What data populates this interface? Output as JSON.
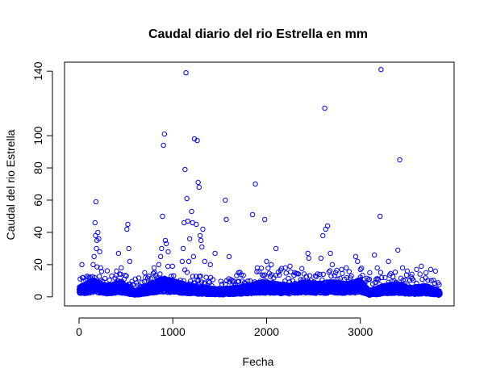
{
  "chart_data": {
    "type": "scatter",
    "title": "Caudal diario del rio Estrella en mm",
    "xlabel": "Fecha",
    "ylabel": "Caudal del rio Estrella",
    "xlim": [
      -155,
      4000
    ],
    "ylim": [
      -5.6,
      145.6
    ],
    "xticks": [
      0,
      1000,
      2000,
      3000
    ],
    "yticks": [
      0,
      20,
      40,
      60,
      80,
      100,
      140
    ],
    "grid": false,
    "legend": "none",
    "marker": "open-circle",
    "color": "#0000ff",
    "baseline": {
      "n": 3850,
      "base_levels": [
        [
          0,
          5
        ],
        [
          150,
          9
        ],
        [
          300,
          6
        ],
        [
          450,
          8
        ],
        [
          600,
          3
        ],
        [
          750,
          7
        ],
        [
          900,
          10
        ],
        [
          1050,
          8
        ],
        [
          1200,
          6
        ],
        [
          1350,
          5
        ],
        [
          1500,
          4
        ],
        [
          1650,
          5
        ],
        [
          1800,
          6
        ],
        [
          1950,
          8
        ],
        [
          2100,
          7
        ],
        [
          2250,
          6
        ],
        [
          2400,
          8
        ],
        [
          2550,
          7
        ],
        [
          2700,
          8
        ],
        [
          2850,
          7
        ],
        [
          3000,
          9
        ],
        [
          3100,
          3
        ],
        [
          3250,
          6
        ],
        [
          3400,
          7
        ],
        [
          3550,
          5
        ],
        [
          3700,
          6
        ],
        [
          3850,
          3
        ]
      ],
      "spike_every": 12,
      "spike_max": 10
    },
    "outliers": [
      [
        30,
        20
      ],
      [
        40,
        12
      ],
      [
        150,
        20
      ],
      [
        160,
        25
      ],
      [
        170,
        46
      ],
      [
        175,
        38
      ],
      [
        180,
        59
      ],
      [
        185,
        30
      ],
      [
        190,
        35
      ],
      [
        200,
        40
      ],
      [
        210,
        36
      ],
      [
        220,
        28
      ],
      [
        230,
        18
      ],
      [
        400,
        16
      ],
      [
        420,
        27
      ],
      [
        450,
        18
      ],
      [
        510,
        42
      ],
      [
        520,
        45
      ],
      [
        530,
        30
      ],
      [
        540,
        22
      ],
      [
        700,
        15
      ],
      [
        800,
        18
      ],
      [
        850,
        20
      ],
      [
        870,
        25
      ],
      [
        880,
        30
      ],
      [
        890,
        50
      ],
      [
        900,
        94
      ],
      [
        910,
        101
      ],
      [
        920,
        35
      ],
      [
        930,
        33
      ],
      [
        950,
        28
      ],
      [
        1100,
        22
      ],
      [
        1110,
        30
      ],
      [
        1120,
        46
      ],
      [
        1130,
        79
      ],
      [
        1140,
        139
      ],
      [
        1150,
        61
      ],
      [
        1160,
        47
      ],
      [
        1170,
        22
      ],
      [
        1180,
        36
      ],
      [
        1200,
        53
      ],
      [
        1210,
        46
      ],
      [
        1220,
        25
      ],
      [
        1230,
        98
      ],
      [
        1250,
        45
      ],
      [
        1260,
        97
      ],
      [
        1270,
        71
      ],
      [
        1280,
        68
      ],
      [
        1290,
        38
      ],
      [
        1300,
        35
      ],
      [
        1310,
        31
      ],
      [
        1320,
        42
      ],
      [
        1340,
        22
      ],
      [
        1400,
        20
      ],
      [
        1450,
        27
      ],
      [
        1560,
        60
      ],
      [
        1570,
        48
      ],
      [
        1600,
        25
      ],
      [
        1700,
        15
      ],
      [
        1850,
        51
      ],
      [
        1880,
        70
      ],
      [
        1900,
        18
      ],
      [
        1980,
        48
      ],
      [
        2000,
        22
      ],
      [
        2050,
        20
      ],
      [
        2100,
        30
      ],
      [
        2200,
        18
      ],
      [
        2250,
        19
      ],
      [
        2300,
        15
      ],
      [
        2440,
        27
      ],
      [
        2450,
        24
      ],
      [
        2580,
        24
      ],
      [
        2600,
        38
      ],
      [
        2620,
        117
      ],
      [
        2630,
        42
      ],
      [
        2650,
        44
      ],
      [
        2680,
        27
      ],
      [
        2700,
        20
      ],
      [
        2800,
        17
      ],
      [
        2850,
        18
      ],
      [
        2950,
        25
      ],
      [
        2970,
        22
      ],
      [
        3000,
        17
      ],
      [
        3100,
        15
      ],
      [
        3150,
        26
      ],
      [
        3180,
        18
      ],
      [
        3210,
        50
      ],
      [
        3220,
        141
      ],
      [
        3300,
        22
      ],
      [
        3400,
        29
      ],
      [
        3420,
        85
      ],
      [
        3450,
        18
      ],
      [
        3500,
        16
      ],
      [
        3550,
        14
      ],
      [
        3600,
        17
      ],
      [
        3650,
        19
      ],
      [
        3700,
        15
      ],
      [
        3750,
        17
      ],
      [
        3800,
        16
      ]
    ]
  }
}
